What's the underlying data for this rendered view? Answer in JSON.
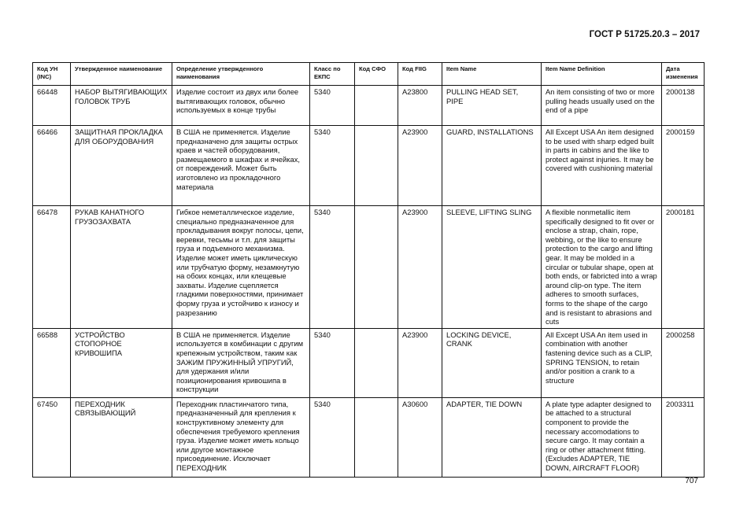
{
  "header": {
    "standard": "ГОСТ Р 51725.20.3 – 2017"
  },
  "footer": {
    "page_number": "707"
  },
  "table": {
    "columns": [
      "Код УН (INC)",
      "Утвержденное наименование",
      "Определение утвержденного наименования",
      "Класс по ЕКПС",
      "Код СФО",
      "Код FIIG",
      "Item Name",
      "Item Name Definition",
      "Дата изменения"
    ],
    "rows": [
      {
        "inc": "66448",
        "name": "НАБОР ВЫТЯГИВАЮЩИХ ГОЛОВОК ТРУБ",
        "definition": "Изделие состоит из двух или более вытягивающих головок, обычно используемых в конце трубы",
        "ekps": "5340",
        "sfo": "",
        "fiig": "A23800",
        "item_name": "PULLING HEAD SET, PIPE",
        "item_definition": "An item consisting of two or more pulling heads usually used on the end of a pipe",
        "date": "2000138"
      },
      {
        "inc": "66466",
        "name": "ЗАЩИТНАЯ ПРОКЛАДКА ДЛЯ ОБОРУДОВАНИЯ",
        "definition": "В США не применяется. Изделие предназначено для защиты острых краев и частей оборудования, размещаемого в шкафах и ячейках, от повреждений. Может быть изготовлено из прокладочного материала",
        "ekps": "5340",
        "sfo": "",
        "fiig": "A23900",
        "item_name": "GUARD, INSTALLATIONS",
        "item_definition": "All Except USA An item designed to be used with sharp edged built in parts in cabins and the like to protect against injuries.  It may be covered with cushioning material",
        "date": "2000159"
      },
      {
        "inc": "66478",
        "name": "РУКАВ КАНАТНОГО ГРУЗОЗАХВАТА",
        "definition": "Гибкое неметаллическое изделие, специально предназначенное для прокладывания вокруг полосы, цепи, веревки, тесьмы и т.п. для защиты груза и подъемного механизма. Изделие может иметь циклическую или трубчатую форму, незамкнутую на обоих концах, или клещевые захваты. Изделие сцепляется гладкими поверхностями, принимает форму груза и устойчиво к износу и разрезанию",
        "ekps": "5340",
        "sfo": "",
        "fiig": "A23900",
        "item_name": "SLEEVE, LIFTING SLING",
        "item_definition": "A flexible nonmetallic item specifically designed to fit over or enclose a strap, chain, rope, webbing, or the like to ensure protection to the cargo and lifting gear.  It may be molded in a circular or tubular shape, open at both ends, or fabricted into a wrap around clip-on type. The item adheres to smooth surfaces, forms to the shape of the cargo and is resistant to abrasions and cuts",
        "date": "2000181"
      },
      {
        "inc": "66588",
        "name": "УСТРОЙСТВО СТОПОРНОЕ КРИВОШИПА",
        "definition": "В США не применяется. Изделие используется в комбинации с другим крепежным устройством, таким как ЗАЖИМ ПРУЖИННЫЙ УПРУГИЙ, для удержания и/или позиционирования кривошипа в конструкции",
        "ekps": "5340",
        "sfo": "",
        "fiig": "A23900",
        "item_name": "LOCKING DEVICE, CRANK",
        "item_definition": "All Except USA An item used in combination with another fastening device such as a CLIP, SPRING TENSION, to retain and/or position a crank to a structure",
        "date": "2000258"
      },
      {
        "inc": "67450",
        "name": "ПЕРЕХОДНИК СВЯЗЫВАЮЩИЙ",
        "definition": "Переходник пластинчатого типа, предназначенный для крепления к конструктивному элементу для обеспечения требуемого крепления груза. Изделие может иметь кольцо или другое монтажное присоединение. Исключает ПЕРЕХОДНИК",
        "ekps": "5340",
        "sfo": "",
        "fiig": "A30600",
        "item_name": "ADAPTER, TIE DOWN",
        "item_definition": "A plate type adapter designed to be attached to a structural component to provide the necessary accomodations to secure cargo.  It may contain a ring or other attachment fitting. (Excludes ADAPTER, TIE DOWN, AIRCRAFT FLOOR)",
        "date": "2003311"
      }
    ]
  }
}
